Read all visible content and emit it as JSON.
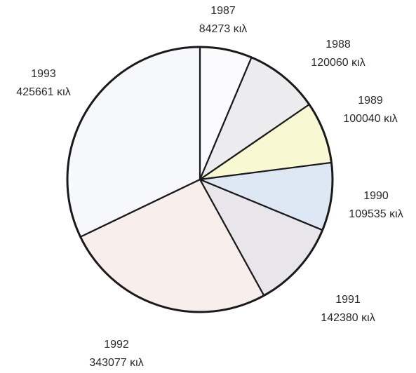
{
  "chart_data": {
    "type": "pie",
    "title": "",
    "unit": "κιλ",
    "categories": [
      "1987",
      "1988",
      "1989",
      "1990",
      "1991",
      "1992",
      "1993"
    ],
    "values": [
      84273,
      120060,
      100040,
      109535,
      142380,
      343077,
      425661
    ],
    "value_labels": [
      "84273 κιλ",
      "120060 κιλ",
      "100040 κιλ",
      "109535 κιλ",
      "142380 κιλ",
      "343077 κιλ",
      "425661 κιλ"
    ],
    "colors": [
      "#fbfbfd",
      "#ecebed",
      "#f8f8d2",
      "#dde8f4",
      "#e8e6ea",
      "#f8eeec",
      "#f7f8fb"
    ],
    "start": "12 o'clock",
    "direction": "clockwise",
    "legend": "none"
  }
}
